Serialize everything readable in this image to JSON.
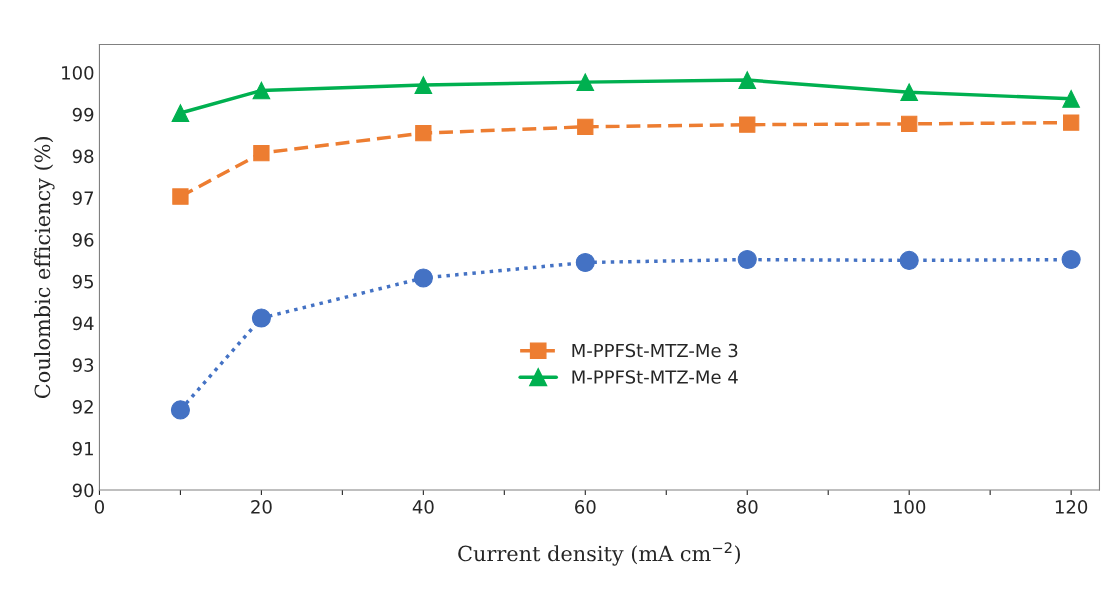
{
  "chart_data": {
    "type": "line",
    "xlabel": "Current density (mA cm$^{−2}$)",
    "ylabel": "Coulombic efficiency (%)",
    "x": [
      10,
      20,
      40,
      60,
      80,
      100,
      120
    ],
    "series": [
      {
        "color": "#4472c4",
        "marker": "circle",
        "line_style": "dotted",
        "values": [
          91.92,
          94.12,
          95.08,
          95.45,
          95.52,
          95.5,
          95.52
        ]
      },
      {
        "name": "M-PPFSt-MTZ-Me 3",
        "color": "#ed7d31",
        "marker": "square",
        "line_style": "dashed",
        "values": [
          97.03,
          98.07,
          98.55,
          98.7,
          98.75,
          98.77,
          98.8
        ]
      },
      {
        "name": "M-PPFSt-MTZ-Me 4",
        "color": "#00b050",
        "marker": "triangle",
        "line_style": "solid",
        "values": [
          99.03,
          99.57,
          99.7,
          99.77,
          99.82,
          99.53,
          99.37
        ]
      }
    ],
    "xlim": [
      0,
      123.5
    ],
    "ylim": [
      90,
      100.67
    ],
    "xticks": [
      0,
      {
        "value": 10,
        "label": null
      },
      20,
      {
        "value": 30,
        "label": null
      },
      40,
      {
        "value": 50,
        "label": null
      },
      60,
      {
        "value": 70,
        "label": null
      },
      80,
      {
        "value": 90,
        "label": null
      },
      100,
      {
        "value": 110,
        "label": null
      },
      120
    ],
    "yticks": [
      90,
      91,
      92,
      93,
      94,
      95,
      96,
      97,
      98,
      99,
      100
    ],
    "grid": false,
    "legend": "center"
  }
}
